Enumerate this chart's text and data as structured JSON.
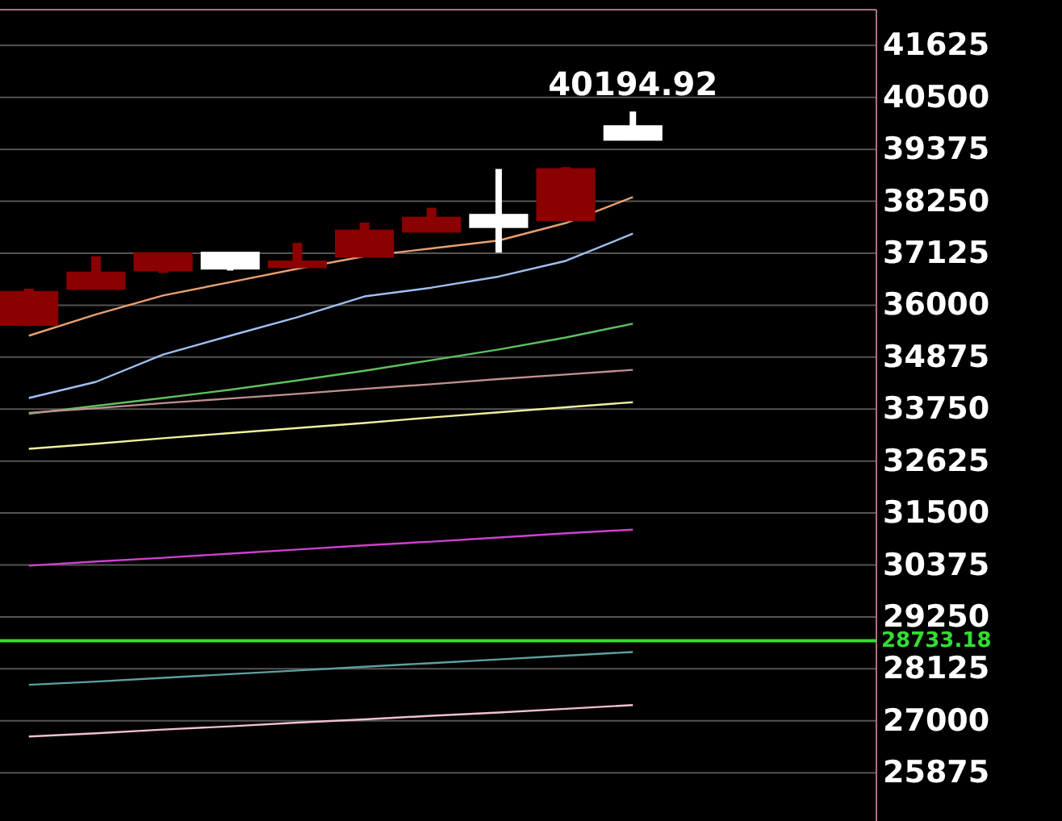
{
  "chart_data": {
    "type": "candlestick",
    "categories": [
      null,
      null,
      null,
      null,
      null,
      null,
      null,
      null,
      null,
      null
    ],
    "ohlc": [
      [
        35570,
        36360,
        35550,
        36290
      ],
      [
        36350,
        37060,
        36340,
        36710
      ],
      [
        36750,
        37130,
        36700,
        37130
      ],
      [
        37140,
        37140,
        36750,
        36790
      ],
      [
        36820,
        37350,
        36810,
        36950
      ],
      [
        37050,
        37790,
        37040,
        37620
      ],
      [
        37590,
        38110,
        37580,
        37900
      ],
      [
        37960,
        38950,
        37140,
        37690
      ],
      [
        37840,
        38990,
        37820,
        38950
      ],
      [
        39880,
        40194.92,
        39570,
        39580
      ]
    ],
    "colors": [
      "#8b0000",
      "#8b0000",
      "#8b0000",
      "#ffffff",
      "#8b0000",
      "#8b0000",
      "#8b0000",
      "#ffffff",
      "#8b0000",
      "#ffffff"
    ],
    "series": [
      {
        "type": "line",
        "color": "#e8a070",
        "values": [
          35340,
          35800,
          36210,
          36500,
          36790,
          37060,
          37230,
          37400,
          37780,
          38340
        ]
      },
      {
        "type": "line",
        "color": "#a0c0f0",
        "values": [
          33990,
          34340,
          34930,
          35340,
          35740,
          36190,
          36380,
          36620,
          36960,
          37550
        ]
      },
      {
        "type": "line",
        "color": "#60c060",
        "values": [
          33650,
          33820,
          33990,
          34170,
          34370,
          34580,
          34810,
          35040,
          35300,
          35600
        ]
      },
      {
        "type": "line",
        "color": "#c09090",
        "values": [
          33670,
          33770,
          33880,
          33980,
          34080,
          34190,
          34290,
          34400,
          34500,
          34600
        ]
      },
      {
        "type": "line",
        "color": "#f0f0a0",
        "values": [
          32890,
          33000,
          33120,
          33230,
          33340,
          33450,
          33570,
          33680,
          33790,
          33900
        ]
      },
      {
        "type": "line",
        "color": "#d040d0",
        "values": [
          30360,
          30450,
          30530,
          30620,
          30710,
          30800,
          30880,
          30970,
          31060,
          31140
        ]
      },
      {
        "type": "line",
        "color": "#5fa0a0",
        "values": [
          27780,
          27850,
          27930,
          28010,
          28090,
          28170,
          28250,
          28330,
          28410,
          28490
        ]
      },
      {
        "type": "line",
        "color": "#f0c0d0",
        "values": [
          26660,
          26730,
          26810,
          26880,
          26960,
          27030,
          27110,
          27180,
          27260,
          27340
        ]
      }
    ],
    "ylim": [
      24830,
      42400
    ],
    "yticks": [
      25875,
      27000,
      28125,
      29250,
      30375,
      31500,
      32625,
      33750,
      34875,
      36000,
      37125,
      38250,
      39375,
      40500,
      41625
    ],
    "grid": "y",
    "ref_lines": [
      {
        "axis": "y",
        "value": 28733.18,
        "label": "28733.18",
        "color": "#33dd33"
      }
    ],
    "annotations": [
      {
        "text": "40194.92",
        "y": 40194.92
      }
    ]
  }
}
